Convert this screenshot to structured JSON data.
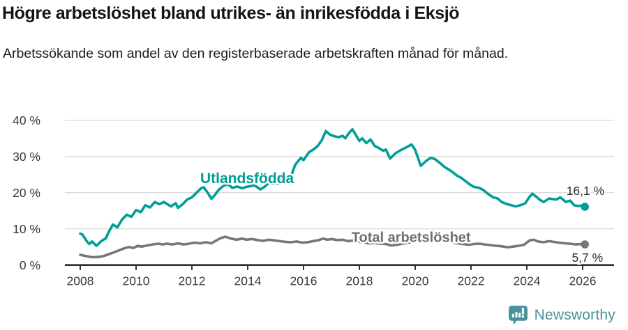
{
  "header": {
    "title": "Högre arbetslöshet bland utrikes- än inrikesfödda i Eksjö",
    "subtitle": "Arbetssökande som andel av den registerbaserade arbetskraften månad för månad."
  },
  "footer": {
    "brand": "Newsworthy"
  },
  "colors": {
    "accent_teal": "#009E96",
    "line_gray": "#76767B",
    "gray_label": "#6E6E73",
    "gridline": "#DBDBDB",
    "axis": "#2F2F2F",
    "tick_text": "#383838",
    "end_label_text": "#2B2B2B",
    "brand_teal": "#47949B"
  },
  "chart_data": {
    "type": "line",
    "title": "Högre arbetslöshet bland utrikes- än inrikesfödda i Eksjö",
    "subtitle": "Arbetssökande som andel av den registerbaserade arbetskraften månad för månad.",
    "xlabel": "",
    "ylabel": "",
    "xlim": [
      2007.45,
      2027.1
    ],
    "ylim": [
      0,
      42
    ],
    "grid": "horizontal",
    "legend_position": "inline-labels",
    "x_ticks": [
      {
        "v": 2008,
        "label": "2008"
      },
      {
        "v": 2010,
        "label": "2010"
      },
      {
        "v": 2012,
        "label": "2012"
      },
      {
        "v": 2014,
        "label": "2014"
      },
      {
        "v": 2016,
        "label": "2016"
      },
      {
        "v": 2018,
        "label": "2018"
      },
      {
        "v": 2020,
        "label": "2020"
      },
      {
        "v": 2022,
        "label": "2022"
      },
      {
        "v": 2024,
        "label": "2024"
      },
      {
        "v": 2026,
        "label": "2026"
      }
    ],
    "y_ticks": [
      {
        "v": 0,
        "label": "0 %"
      },
      {
        "v": 10,
        "label": "10 %"
      },
      {
        "v": 20,
        "label": "20 %"
      },
      {
        "v": 30,
        "label": "30 %"
      },
      {
        "v": 40,
        "label": "40 %"
      }
    ],
    "series": [
      {
        "name": "Total arbetslöshet",
        "color": "#76767B",
        "label_color": "#6E6E73",
        "label_anchor": {
          "year": 2017.72,
          "value": 6.35,
          "anchor": "start",
          "font_size": 20
        },
        "end_label": "5,7 %",
        "end_value": 5.7,
        "end_label_offset": [
          26,
          25
        ],
        "points": [
          [
            2008.0,
            2.8
          ],
          [
            2008.2,
            2.5
          ],
          [
            2008.4,
            2.2
          ],
          [
            2008.6,
            2.2
          ],
          [
            2008.8,
            2.4
          ],
          [
            2009.0,
            2.9
          ],
          [
            2009.2,
            3.5
          ],
          [
            2009.4,
            4.1
          ],
          [
            2009.6,
            4.7
          ],
          [
            2009.75,
            5.0
          ],
          [
            2009.9,
            4.7
          ],
          [
            2010.05,
            5.3
          ],
          [
            2010.2,
            5.1
          ],
          [
            2010.4,
            5.4
          ],
          [
            2010.6,
            5.7
          ],
          [
            2010.8,
            5.9
          ],
          [
            2010.95,
            5.7
          ],
          [
            2011.1,
            5.9
          ],
          [
            2011.3,
            5.7
          ],
          [
            2011.5,
            6.0
          ],
          [
            2011.7,
            5.7
          ],
          [
            2011.9,
            5.9
          ],
          [
            2012.1,
            6.2
          ],
          [
            2012.3,
            6.0
          ],
          [
            2012.5,
            6.3
          ],
          [
            2012.7,
            6.0
          ],
          [
            2012.9,
            6.9
          ],
          [
            2013.05,
            7.5
          ],
          [
            2013.2,
            7.8
          ],
          [
            2013.4,
            7.3
          ],
          [
            2013.6,
            7.0
          ],
          [
            2013.8,
            7.3
          ],
          [
            2013.95,
            7.0
          ],
          [
            2014.15,
            7.2
          ],
          [
            2014.35,
            6.9
          ],
          [
            2014.55,
            6.7
          ],
          [
            2014.75,
            7.0
          ],
          [
            2014.95,
            6.8
          ],
          [
            2015.15,
            6.6
          ],
          [
            2015.35,
            6.4
          ],
          [
            2015.55,
            6.3
          ],
          [
            2015.75,
            6.5
          ],
          [
            2015.95,
            6.2
          ],
          [
            2016.15,
            6.3
          ],
          [
            2016.35,
            6.6
          ],
          [
            2016.55,
            6.9
          ],
          [
            2016.7,
            7.3
          ],
          [
            2016.85,
            7.0
          ],
          [
            2017.0,
            7.2
          ],
          [
            2017.2,
            6.9
          ],
          [
            2017.4,
            7.0
          ],
          [
            2017.6,
            6.6
          ],
          [
            2017.8,
            6.8
          ],
          [
            2017.95,
            6.5
          ],
          [
            2018.15,
            6.2
          ],
          [
            2018.35,
            6.0
          ],
          [
            2018.55,
            6.1
          ],
          [
            2018.75,
            5.9
          ],
          [
            2018.95,
            5.8
          ],
          [
            2019.15,
            5.4
          ],
          [
            2019.35,
            5.6
          ],
          [
            2019.55,
            5.9
          ],
          [
            2019.75,
            6.2
          ],
          [
            2019.95,
            6.5
          ],
          [
            2020.15,
            6.8
          ],
          [
            2020.35,
            7.2
          ],
          [
            2020.5,
            7.0
          ],
          [
            2020.7,
            7.1
          ],
          [
            2020.9,
            6.9
          ],
          [
            2021.1,
            6.6
          ],
          [
            2021.3,
            6.3
          ],
          [
            2021.5,
            6.0
          ],
          [
            2021.7,
            5.8
          ],
          [
            2021.9,
            5.6
          ],
          [
            2022.1,
            5.8
          ],
          [
            2022.3,
            5.9
          ],
          [
            2022.5,
            5.7
          ],
          [
            2022.7,
            5.5
          ],
          [
            2022.9,
            5.3
          ],
          [
            2023.1,
            5.2
          ],
          [
            2023.3,
            4.9
          ],
          [
            2023.5,
            5.1
          ],
          [
            2023.7,
            5.3
          ],
          [
            2023.9,
            5.6
          ],
          [
            2024.1,
            6.8
          ],
          [
            2024.25,
            7.0
          ],
          [
            2024.4,
            6.5
          ],
          [
            2024.6,
            6.3
          ],
          [
            2024.8,
            6.6
          ],
          [
            2024.95,
            6.4
          ],
          [
            2025.15,
            6.2
          ],
          [
            2025.35,
            6.0
          ],
          [
            2025.55,
            5.9
          ],
          [
            2025.75,
            5.7
          ],
          [
            2025.95,
            5.8
          ],
          [
            2026.08,
            5.7
          ]
        ]
      },
      {
        "name": "Utlandsfödda",
        "color": "#009E96",
        "label_color": "#009E96",
        "label_anchor": {
          "year": 2012.3,
          "value": 22.6,
          "anchor": "start",
          "font_size": 21
        },
        "end_label": "16,1 %",
        "end_value": 16.1,
        "end_label_offset": [
          28,
          -17
        ],
        "points": [
          [
            2008.0,
            8.7
          ],
          [
            2008.08,
            8.4
          ],
          [
            2008.25,
            6.4
          ],
          [
            2008.33,
            5.8
          ],
          [
            2008.42,
            6.5
          ],
          [
            2008.58,
            5.3
          ],
          [
            2008.75,
            6.6
          ],
          [
            2008.92,
            7.4
          ],
          [
            2009.0,
            8.8
          ],
          [
            2009.17,
            11.2
          ],
          [
            2009.33,
            10.4
          ],
          [
            2009.5,
            12.6
          ],
          [
            2009.67,
            13.9
          ],
          [
            2009.83,
            13.3
          ],
          [
            2010.0,
            15.2
          ],
          [
            2010.17,
            14.6
          ],
          [
            2010.33,
            16.5
          ],
          [
            2010.5,
            15.9
          ],
          [
            2010.67,
            17.4
          ],
          [
            2010.83,
            16.8
          ],
          [
            2011.0,
            17.4
          ],
          [
            2011.25,
            16.2
          ],
          [
            2011.42,
            17.1
          ],
          [
            2011.5,
            15.8
          ],
          [
            2011.67,
            16.8
          ],
          [
            2011.83,
            18.1
          ],
          [
            2012.0,
            18.7
          ],
          [
            2012.17,
            20.0
          ],
          [
            2012.33,
            21.2
          ],
          [
            2012.42,
            21.5
          ],
          [
            2012.5,
            20.7
          ],
          [
            2012.58,
            19.8
          ],
          [
            2012.7,
            18.3
          ],
          [
            2012.83,
            19.4
          ],
          [
            2012.95,
            20.7
          ],
          [
            2013.13,
            21.9
          ],
          [
            2013.3,
            22.3
          ],
          [
            2013.45,
            21.3
          ],
          [
            2013.63,
            21.7
          ],
          [
            2013.8,
            21.2
          ],
          [
            2013.95,
            21.6
          ],
          [
            2014.1,
            21.8
          ],
          [
            2014.25,
            22.0
          ],
          [
            2014.45,
            20.9
          ],
          [
            2014.6,
            21.6
          ],
          [
            2014.75,
            22.6
          ],
          [
            2014.9,
            22.4
          ],
          [
            2015.1,
            22.5
          ],
          [
            2015.3,
            22.9
          ],
          [
            2015.5,
            23.4
          ],
          [
            2015.7,
            27.7
          ],
          [
            2015.9,
            29.6
          ],
          [
            2016.0,
            29.0
          ],
          [
            2016.2,
            31.2
          ],
          [
            2016.35,
            31.9
          ],
          [
            2016.5,
            32.8
          ],
          [
            2016.65,
            34.4
          ],
          [
            2016.8,
            37.0
          ],
          [
            2016.95,
            36.0
          ],
          [
            2017.1,
            35.6
          ],
          [
            2017.25,
            35.3
          ],
          [
            2017.4,
            35.7
          ],
          [
            2017.5,
            35.0
          ],
          [
            2017.6,
            36.2
          ],
          [
            2017.75,
            37.5
          ],
          [
            2017.9,
            35.6
          ],
          [
            2018.0,
            34.3
          ],
          [
            2018.1,
            35.0
          ],
          [
            2018.25,
            33.7
          ],
          [
            2018.4,
            34.7
          ],
          [
            2018.55,
            32.9
          ],
          [
            2018.7,
            32.3
          ],
          [
            2018.85,
            31.6
          ],
          [
            2018.95,
            31.9
          ],
          [
            2019.1,
            29.4
          ],
          [
            2019.3,
            30.9
          ],
          [
            2019.5,
            31.8
          ],
          [
            2019.7,
            32.6
          ],
          [
            2019.87,
            33.3
          ],
          [
            2020.0,
            31.8
          ],
          [
            2020.2,
            27.4
          ],
          [
            2020.4,
            28.8
          ],
          [
            2020.55,
            29.6
          ],
          [
            2020.7,
            29.3
          ],
          [
            2020.9,
            28.1
          ],
          [
            2021.05,
            27.1
          ],
          [
            2021.2,
            26.4
          ],
          [
            2021.35,
            25.6
          ],
          [
            2021.5,
            24.7
          ],
          [
            2021.65,
            24.1
          ],
          [
            2021.8,
            23.2
          ],
          [
            2021.95,
            22.3
          ],
          [
            2022.1,
            21.6
          ],
          [
            2022.3,
            21.3
          ],
          [
            2022.45,
            20.7
          ],
          [
            2022.6,
            19.7
          ],
          [
            2022.8,
            18.7
          ],
          [
            2022.95,
            18.4
          ],
          [
            2023.1,
            17.4
          ],
          [
            2023.3,
            16.8
          ],
          [
            2023.45,
            16.5
          ],
          [
            2023.6,
            16.2
          ],
          [
            2023.8,
            16.6
          ],
          [
            2023.95,
            17.1
          ],
          [
            2024.1,
            18.9
          ],
          [
            2024.2,
            19.7
          ],
          [
            2024.35,
            18.8
          ],
          [
            2024.45,
            18.1
          ],
          [
            2024.6,
            17.4
          ],
          [
            2024.8,
            18.4
          ],
          [
            2024.95,
            18.2
          ],
          [
            2025.05,
            18.1
          ],
          [
            2025.2,
            18.7
          ],
          [
            2025.4,
            17.4
          ],
          [
            2025.55,
            17.8
          ],
          [
            2025.7,
            16.5
          ],
          [
            2025.85,
            16.3
          ],
          [
            2026.0,
            16.4
          ],
          [
            2026.08,
            16.1
          ]
        ]
      }
    ]
  }
}
